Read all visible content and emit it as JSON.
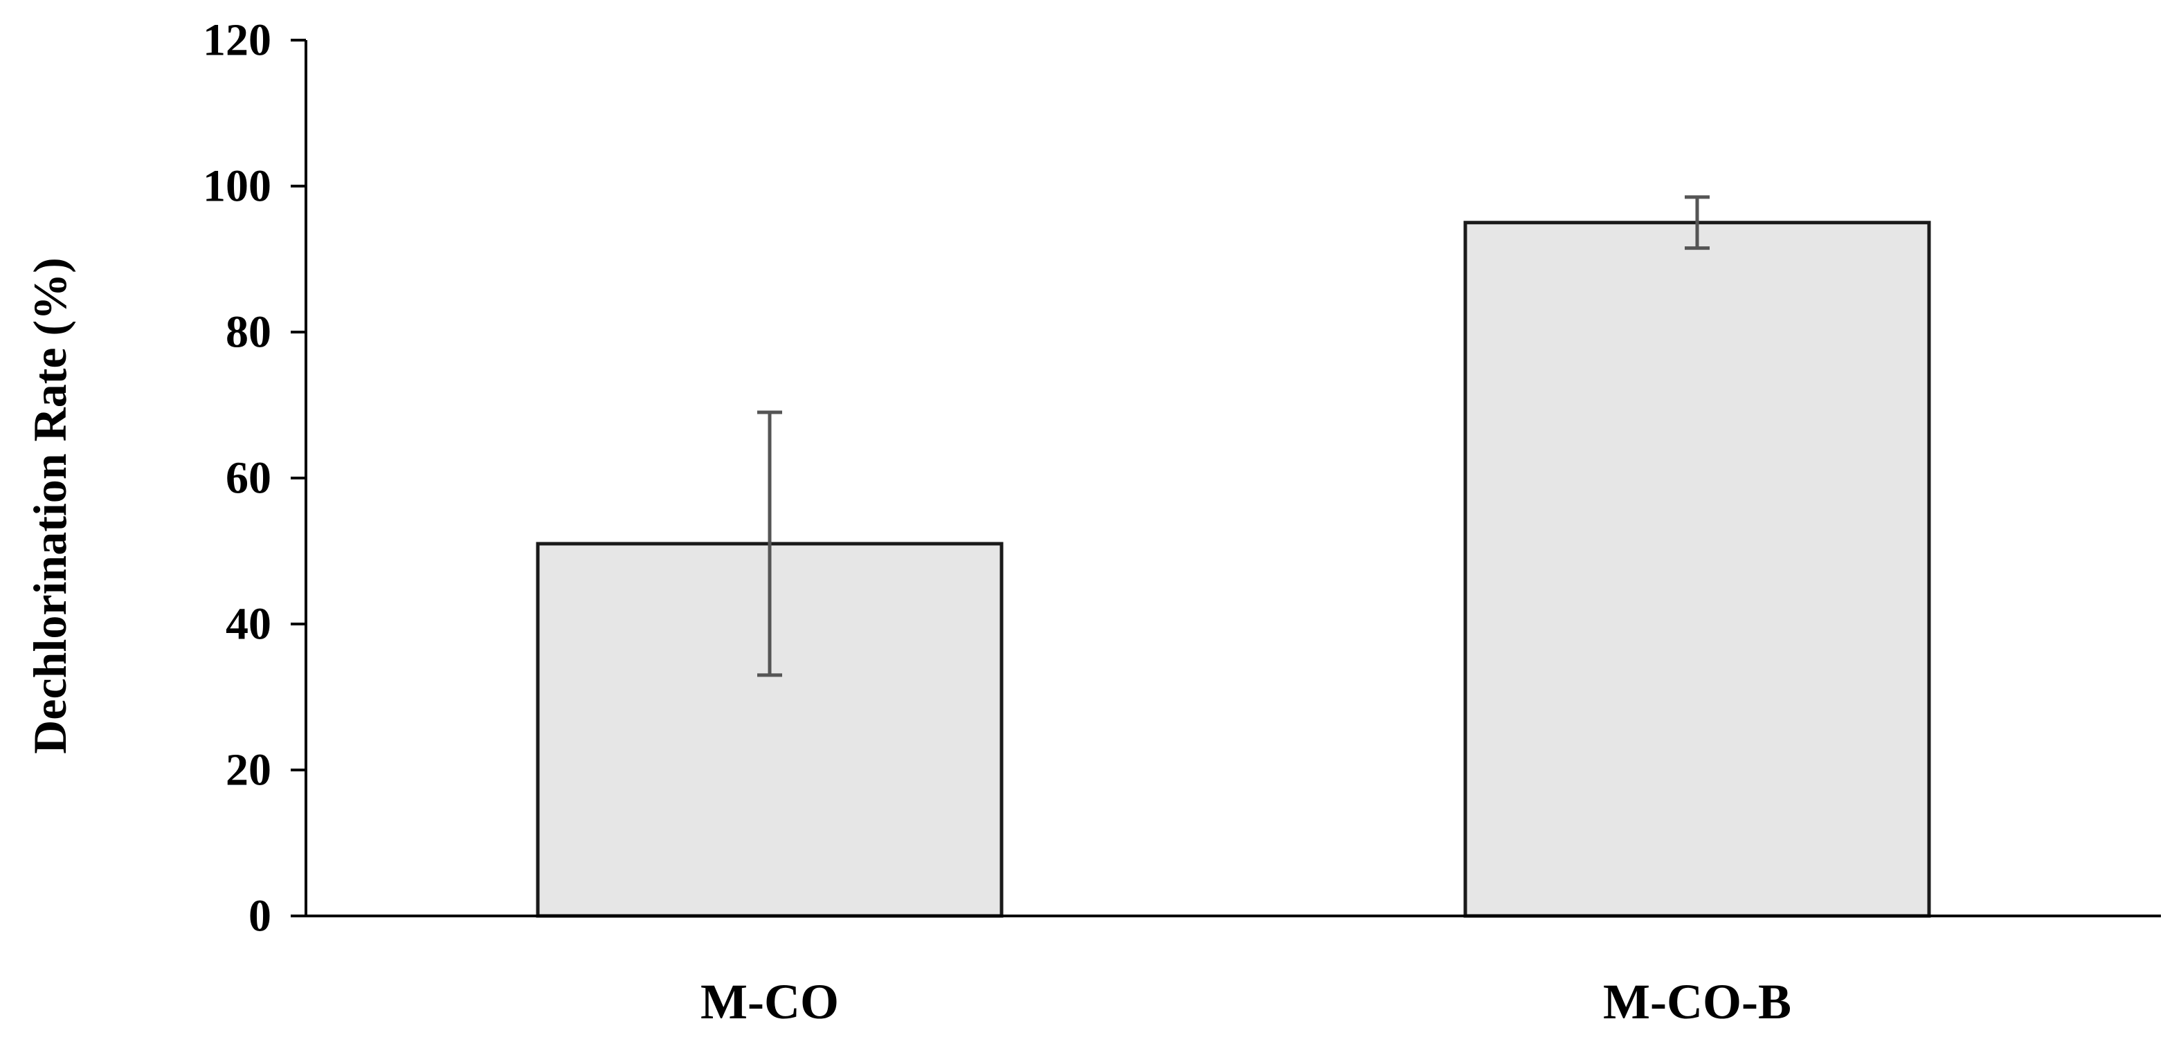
{
  "chart_data": {
    "type": "bar",
    "title": "",
    "xlabel": "",
    "ylabel": "Dechlorination Rate (%)",
    "categories": [
      "M-CO",
      "M-CO-B"
    ],
    "values": [
      51,
      95
    ],
    "error": [
      18,
      3.5
    ],
    "ylim": [
      0,
      120
    ],
    "yticks": [
      0,
      20,
      40,
      60,
      80,
      100,
      120
    ],
    "ytick_labels": [
      "0",
      "20",
      "40",
      "60",
      "80",
      "100",
      "120"
    ],
    "grid": false,
    "legend": "none",
    "colors": {
      "bar_fill": "#e6e6e6",
      "bar_stroke": "#1a1a1a",
      "error_bar": "#555555",
      "axis": "#000000"
    }
  }
}
